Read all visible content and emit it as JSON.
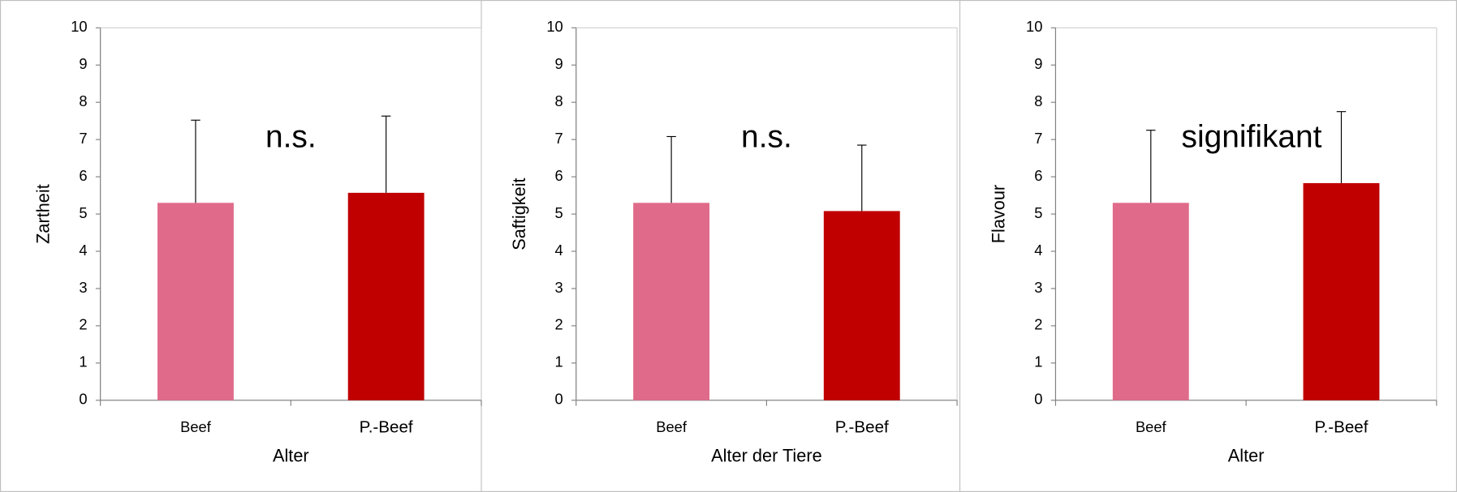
{
  "chart_data": [
    {
      "type": "bar",
      "categories": [
        "Beef",
        "P.-Beef"
      ],
      "values": [
        5.3,
        5.57
      ],
      "errors": [
        2.22,
        2.06
      ],
      "colors": [
        "#e06a8a",
        "#c00000"
      ],
      "y_label": "Zartheit",
      "x_label": "Alter",
      "annotation": "n.s.",
      "ylim": [
        0,
        10
      ],
      "yticks": [
        0,
        1,
        2,
        3,
        4,
        5,
        6,
        7,
        8,
        9,
        10
      ]
    },
    {
      "type": "bar",
      "categories": [
        "Beef",
        "P.-Beef"
      ],
      "values": [
        5.3,
        5.08
      ],
      "errors": [
        1.78,
        1.77
      ],
      "colors": [
        "#e06a8a",
        "#c00000"
      ],
      "y_label": "Saftigkeit",
      "x_label": "Alter der Tiere",
      "annotation": "n.s.",
      "ylim": [
        0,
        10
      ],
      "yticks": [
        0,
        1,
        2,
        3,
        4,
        5,
        6,
        7,
        8,
        9,
        10
      ]
    },
    {
      "type": "bar",
      "categories": [
        "Beef",
        "P.-Beef"
      ],
      "values": [
        5.3,
        5.83
      ],
      "errors": [
        1.95,
        1.92
      ],
      "colors": [
        "#e06a8a",
        "#c00000"
      ],
      "y_label": "Flavour",
      "x_label": "Alter",
      "annotation": "signifikant",
      "ylim": [
        0,
        10
      ],
      "yticks": [
        0,
        1,
        2,
        3,
        4,
        5,
        6,
        7,
        8,
        9,
        10
      ]
    }
  ]
}
